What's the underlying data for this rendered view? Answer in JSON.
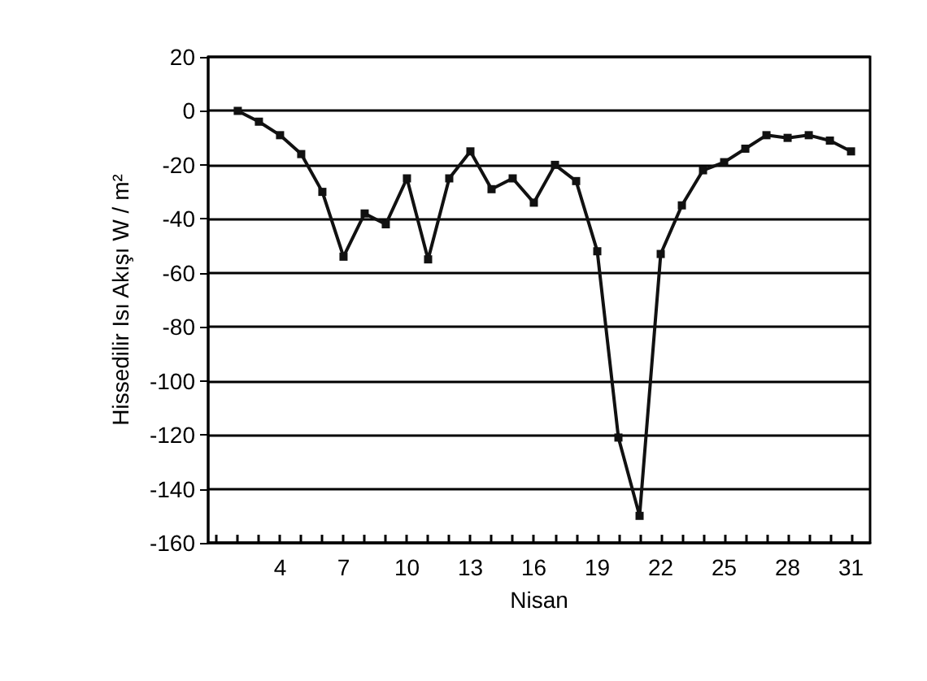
{
  "chart_data": {
    "type": "line",
    "xlabel": "Nisan",
    "ylabel": "Hissedilir Isı Akışı W / m²",
    "x": [
      2,
      3,
      4,
      5,
      6,
      7,
      8,
      9,
      10,
      11,
      12,
      13,
      14,
      15,
      16,
      17,
      18,
      19,
      20,
      21,
      22,
      23,
      24,
      25,
      26,
      27,
      28,
      29,
      30,
      31
    ],
    "series": [
      {
        "color": "#111111",
        "values": [
          0,
          -4,
          -9,
          -16,
          -30,
          -54,
          -38,
          -42,
          -25,
          -55,
          -25,
          -15,
          -29,
          -25,
          -34,
          -20,
          -26,
          -52,
          -121,
          -150,
          -53,
          -35,
          -22,
          -19,
          -14,
          -9,
          -10,
          -9,
          -11,
          -15
        ]
      }
    ],
    "xlim": [
      0.6,
      31.9
    ],
    "xticks": [
      {
        "value": 1,
        "label": null
      },
      {
        "value": 2,
        "label": null
      },
      {
        "value": 3,
        "label": null
      },
      4,
      {
        "value": 5,
        "label": null
      },
      {
        "value": 6,
        "label": null
      },
      7,
      {
        "value": 8,
        "label": null
      },
      {
        "value": 9,
        "label": null
      },
      10,
      {
        "value": 11,
        "label": null
      },
      {
        "value": 12,
        "label": null
      },
      13,
      {
        "value": 14,
        "label": null
      },
      {
        "value": 15,
        "label": null
      },
      16,
      {
        "value": 17,
        "label": null
      },
      {
        "value": 18,
        "label": null
      },
      19,
      {
        "value": 20,
        "label": null
      },
      {
        "value": 21,
        "label": null
      },
      22,
      {
        "value": 23,
        "label": null
      },
      {
        "value": 24,
        "label": null
      },
      25,
      {
        "value": 26,
        "label": null
      },
      {
        "value": 27,
        "label": null
      },
      28,
      {
        "value": 29,
        "label": null
      },
      {
        "value": 30,
        "label": null
      },
      31
    ],
    "ylim": [
      -160,
      20
    ],
    "yticks": [
      -160,
      -140,
      -120,
      -100,
      -80,
      -60,
      -40,
      -20,
      0,
      20
    ],
    "grid": "y",
    "marker": "square",
    "line_style": "solid"
  }
}
